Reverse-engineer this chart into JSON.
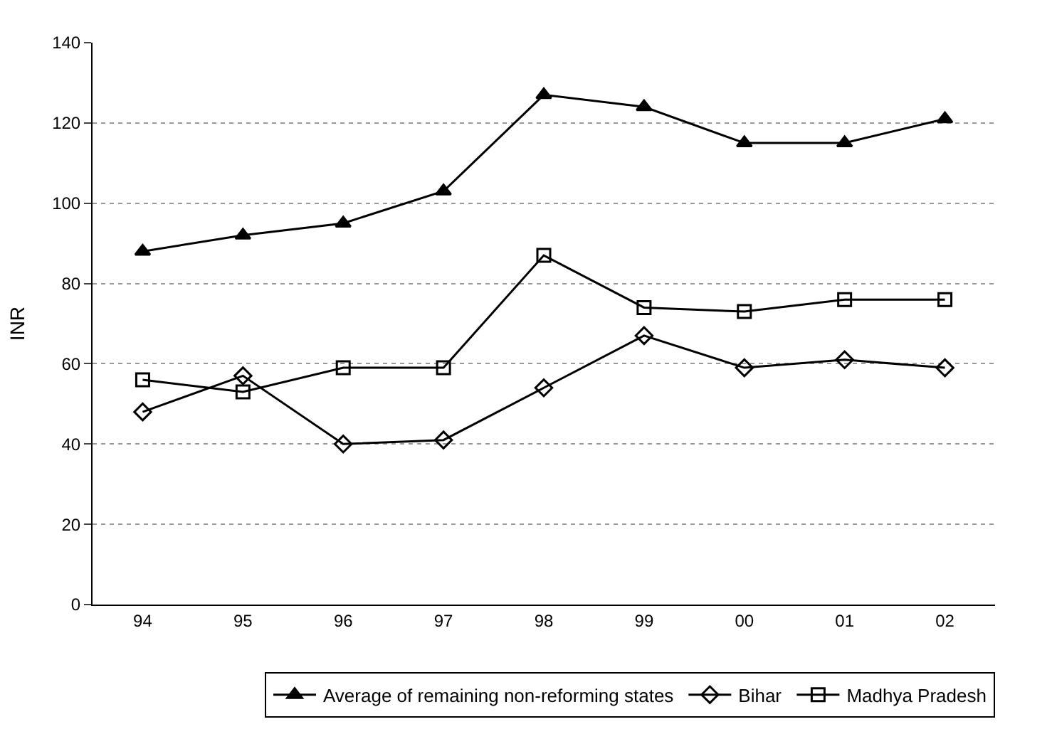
{
  "chart_data": {
    "type": "line",
    "ylabel": "INR",
    "categories": [
      "94",
      "95",
      "96",
      "97",
      "98",
      "99",
      "00",
      "01",
      "02"
    ],
    "series": [
      {
        "name": "Average of remaining non-reforming states",
        "color": "#000000",
        "marker": "triangle",
        "values": [
          88,
          92,
          95,
          103,
          127,
          124,
          115,
          115,
          121
        ]
      },
      {
        "name": "Bihar",
        "color": "#000000",
        "marker": "diamond",
        "values": [
          48,
          57,
          40,
          41,
          54,
          67,
          59,
          61,
          59
        ]
      },
      {
        "name": "Madhya Pradesh",
        "color": "#000000",
        "marker": "square",
        "values": [
          56,
          53,
          59,
          59,
          87,
          74,
          73,
          76,
          76
        ]
      }
    ],
    "ylim": [
      0,
      140
    ],
    "yticks": [
      0,
      20,
      40,
      60,
      80,
      100,
      120,
      140
    ],
    "grid": "y",
    "legend": "bottom",
    "line_style": "solid"
  }
}
